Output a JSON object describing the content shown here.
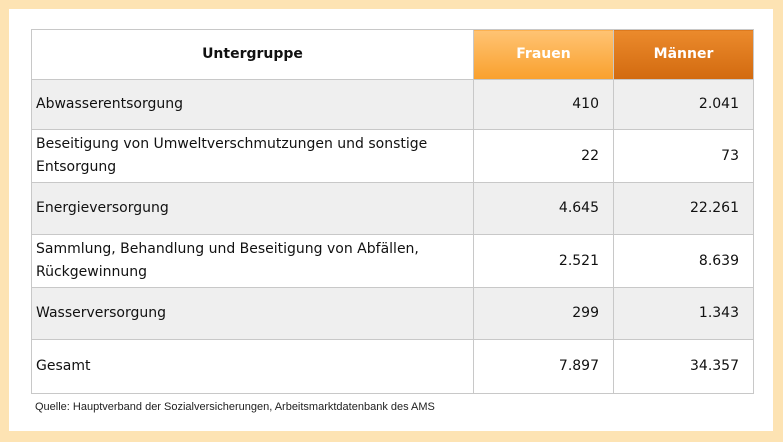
{
  "table": {
    "headers": {
      "untergruppe": "Untergruppe",
      "frauen": "Frauen",
      "maenner": "Männer"
    },
    "rows": [
      {
        "label": "Abwasserentsorgung",
        "frauen": "410",
        "maenner": "2.041"
      },
      {
        "label": "Beseitigung von Umweltverschmutzungen und sonstige Entsorgung",
        "frauen": "22",
        "maenner": "73"
      },
      {
        "label": "Energieversorgung",
        "frauen": "4.645",
        "maenner": "22.261"
      },
      {
        "label": "Sammlung, Behandlung und Beseitigung von Abfällen, Rückgewinnung",
        "frauen": "2.521",
        "maenner": "8.639"
      },
      {
        "label": "Wasserversorgung",
        "frauen": "299",
        "maenner": "1.343"
      },
      {
        "label": "Gesamt",
        "frauen": "7.897",
        "maenner": "34.357"
      }
    ]
  },
  "source": "Quelle: Hauptverband der Sozialversicherungen, Arbeitsmarktdatenbank des AMS",
  "colors": {
    "background": "#fde3b3",
    "frauen_header": "#f9a02d",
    "maenner_header": "#d26a0f",
    "row_shade": "#efefef"
  }
}
